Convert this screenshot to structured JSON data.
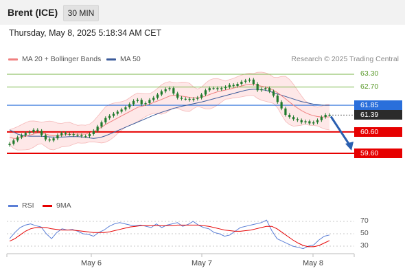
{
  "header": {
    "instrument": "Brent (ICE)",
    "timeframe": "30 MIN",
    "datetime": "Thursday, May 8, 2025 5:18:34 AM CET"
  },
  "legend": {
    "ma20_label": "MA 20 + Bollinger Bands",
    "ma50_label": "MA 50",
    "credit": "Research © 2025 Trading Central"
  },
  "colors": {
    "ma20": "#f08080",
    "ma50": "#3a5a9a",
    "candle": "#1f7a2b",
    "support_red": "#e60000",
    "resistance_green": "#7ab648",
    "pivot_blue": "#2a6fdb",
    "rsi": "#5b7fd6",
    "rsi_ma": "#e60000",
    "bollinger_fill": "#fde0e0"
  },
  "chart_data": {
    "type": "candlestick",
    "timeframe": "30 MIN",
    "x_ticks": [
      "May 6",
      "May 7",
      "May 8"
    ],
    "price_levels": {
      "resistance": [
        {
          "value": 63.3,
          "label": "63.30"
        },
        {
          "value": 62.7,
          "label": "62.70"
        }
      ],
      "pivot": {
        "value": 61.85,
        "label": "61.85"
      },
      "last_price": {
        "value": 61.39,
        "label": "61.39"
      },
      "support": [
        {
          "value": 60.6,
          "label": "60.60"
        },
        {
          "value": 59.6,
          "label": "59.60"
        }
      ]
    },
    "forecast_arrow": {
      "from": 61.39,
      "to": 59.6
    },
    "close_series": [
      60.05,
      60.2,
      60.35,
      60.45,
      60.55,
      60.6,
      60.7,
      60.65,
      60.45,
      60.25,
      60.2,
      60.3,
      60.45,
      60.55,
      60.5,
      60.5,
      60.45,
      60.45,
      60.4,
      60.4,
      60.5,
      60.65,
      60.85,
      61.05,
      61.25,
      61.35,
      61.45,
      61.55,
      61.65,
      61.75,
      61.9,
      62.05,
      62.1,
      61.9,
      61.95,
      62.1,
      62.2,
      62.35,
      62.5,
      62.6,
      62.65,
      62.4,
      62.2,
      62.15,
      62.15,
      62.1,
      62.15,
      62.2,
      62.35,
      62.55,
      62.65,
      62.65,
      62.6,
      62.65,
      62.7,
      62.8,
      62.75,
      62.85,
      62.95,
      63.0,
      63.05,
      62.85,
      62.55,
      62.6,
      62.65,
      62.5,
      62.3,
      62.0,
      61.7,
      61.4,
      61.3,
      61.2,
      61.15,
      61.05,
      61.1,
      61.0,
      61.05,
      61.15,
      61.3,
      61.4,
      61.4
    ],
    "ma20": [
      60.35,
      60.3,
      60.3,
      60.35,
      60.4,
      60.45,
      60.5,
      60.55,
      60.55,
      60.5,
      60.45,
      60.42,
      60.42,
      60.45,
      60.48,
      60.5,
      60.5,
      60.5,
      60.5,
      60.5,
      60.55,
      60.62,
      60.72,
      60.82,
      60.95,
      61.05,
      61.15,
      61.25,
      61.35,
      61.45,
      61.55,
      61.65,
      61.75,
      61.8,
      61.85,
      61.9,
      61.98,
      62.05,
      62.12,
      62.2,
      62.28,
      62.32,
      62.3,
      62.28,
      62.25,
      62.22,
      62.2,
      62.2,
      62.22,
      62.28,
      62.35,
      62.42,
      62.48,
      62.52,
      62.56,
      62.6,
      62.65,
      62.7,
      62.75,
      62.8,
      62.83,
      62.82,
      62.78,
      62.74,
      62.7,
      62.64,
      62.55,
      62.44,
      62.3,
      62.15,
      62.0,
      61.85,
      61.72,
      61.6,
      61.5,
      61.42,
      61.36,
      61.32,
      61.3,
      61.3,
      61.3
    ],
    "ma50": [
      60.7,
      60.6,
      60.5,
      60.45,
      60.42,
      60.4,
      60.4,
      60.4,
      60.4,
      60.38,
      60.37,
      60.36,
      60.36,
      60.36,
      60.37,
      60.38,
      60.38,
      60.38,
      60.37,
      60.35,
      60.32,
      60.3,
      60.32,
      60.36,
      60.42,
      60.5,
      60.58,
      60.66,
      60.74,
      60.82,
      60.9,
      60.98,
      61.06,
      61.14,
      61.22,
      61.3,
      61.38,
      61.45,
      61.52,
      61.58,
      61.64,
      61.7,
      61.75,
      61.8,
      61.84,
      61.88,
      61.92,
      61.96,
      62.0,
      62.05,
      62.1,
      62.15,
      62.2,
      62.25,
      62.3,
      62.35,
      62.4,
      62.45,
      62.5,
      62.55,
      62.58,
      62.6,
      62.6,
      62.58,
      62.55,
      62.5,
      62.44,
      62.38,
      62.32,
      62.26,
      62.2,
      62.14,
      62.08,
      62.02,
      61.98,
      61.94,
      61.9,
      61.88,
      61.86,
      61.85,
      61.85
    ],
    "rsi_panel": {
      "rsi_label": "RSI",
      "ma_label": "9MA",
      "levels": [
        70,
        50,
        30
      ],
      "rsi": [
        42,
        52,
        60,
        64,
        66,
        63,
        61,
        50,
        42,
        52,
        58,
        56,
        57,
        54,
        50,
        49,
        46,
        52,
        56,
        62,
        66,
        68,
        66,
        64,
        63,
        64,
        62,
        60,
        66,
        60,
        64,
        66,
        68,
        62,
        65,
        70,
        64,
        60,
        58,
        52,
        50,
        46,
        48,
        54,
        60,
        62,
        64,
        66,
        68,
        72,
        55,
        42,
        38,
        34,
        30,
        28,
        26,
        30,
        32,
        40,
        46,
        48
      ],
      "rsi_ma": [
        38,
        42,
        48,
        54,
        58,
        60,
        60,
        60,
        58,
        57,
        56,
        56,
        56,
        55,
        54,
        53,
        52,
        52,
        52,
        53,
        55,
        57,
        59,
        61,
        62,
        63,
        63,
        63,
        63,
        63,
        63,
        63,
        64,
        64,
        64,
        64,
        64,
        63,
        62,
        60,
        58,
        56,
        55,
        54,
        54,
        55,
        56,
        58,
        60,
        62,
        62,
        58,
        52,
        46,
        40,
        35,
        31,
        29,
        29,
        31,
        35,
        39
      ]
    }
  }
}
